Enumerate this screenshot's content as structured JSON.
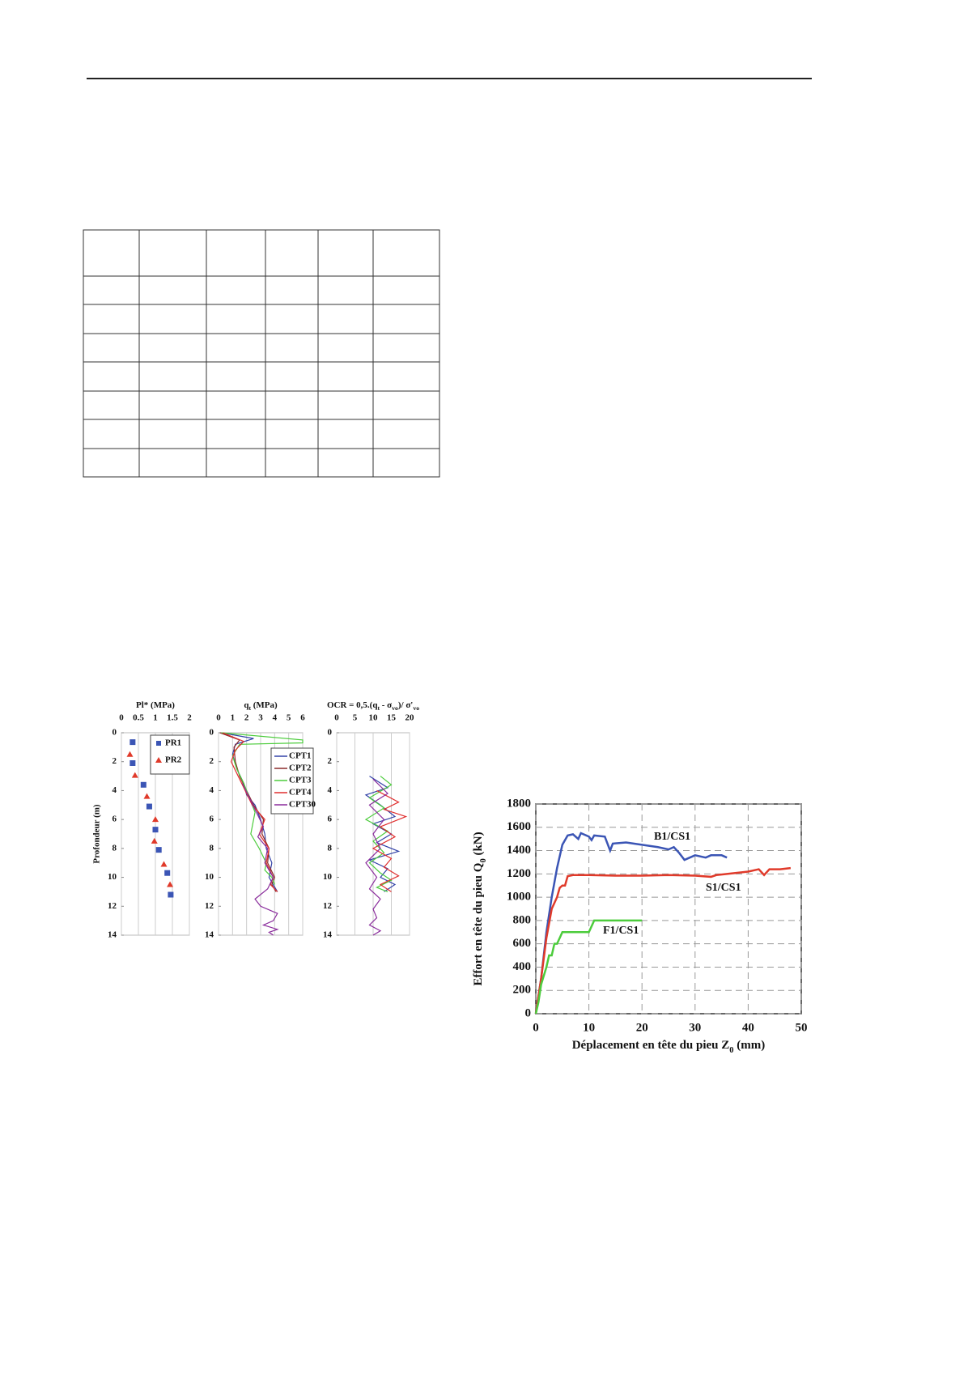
{
  "chart_data": [
    {
      "type": "scatter",
      "title": [
        {
          "text": "Pl* (MPa)"
        }
      ],
      "ylabel": "Profondeur (m)",
      "xlim": [
        0,
        2
      ],
      "xticks": [
        0,
        0.5,
        1,
        1.5,
        2
      ],
      "ylim": [
        0,
        14
      ],
      "yticks": [
        0,
        2,
        4,
        6,
        8,
        10,
        12,
        14
      ],
      "y_reversed": true,
      "x_axis_top": true,
      "grid": "vertical",
      "series": [
        {
          "name": "PR1",
          "color": "#3b55b5",
          "marker": "square",
          "x": [
            0.33,
            0.33,
            0.65,
            0.82,
            1.0,
            1.1,
            1.35,
            1.45
          ],
          "y": [
            0.65,
            2.1,
            3.6,
            5.1,
            6.7,
            8.1,
            9.7,
            11.2
          ]
        },
        {
          "name": "PR2",
          "color": "#e03a2a",
          "marker": "triangle",
          "x": [
            0.25,
            0.4,
            0.75,
            1.0,
            0.97,
            1.25,
            1.43
          ],
          "y": [
            1.5,
            2.95,
            4.4,
            6.0,
            7.5,
            9.1,
            10.5
          ]
        }
      ]
    },
    {
      "type": "line",
      "title": [
        {
          "text": "q"
        },
        {
          "text": "t",
          "sub": true
        },
        {
          "text": " (MPa)"
        }
      ],
      "xlim": [
        0,
        6
      ],
      "xticks": [
        0,
        1,
        2,
        3,
        4,
        5,
        6
      ],
      "ylim": [
        0,
        14
      ],
      "yticks": [
        0,
        2,
        4,
        6,
        8,
        10,
        12,
        14
      ],
      "y_reversed": true,
      "x_axis_top": true,
      "grid": "vertical",
      "series": [
        {
          "name": "CPT1",
          "color": "#3343a8",
          "x": [
            0.2,
            2.5,
            1.2,
            1.0,
            1.3,
            1.8,
            2.0,
            2.6,
            3.0,
            3.3,
            3.4,
            3.8,
            3.6,
            4.2
          ],
          "y": [
            0,
            0.4,
            0.8,
            1.5,
            2.5,
            3.5,
            4.3,
            5,
            6,
            7,
            8,
            9,
            10,
            11
          ]
        },
        {
          "name": "CPT2",
          "color": "#8b2a2a",
          "x": [
            0.1,
            1.5,
            1.1,
            1.2,
            1.5,
            2.0,
            2.5,
            3.2,
            3.1,
            3.6,
            3.5,
            4.0,
            3.8,
            4.1
          ],
          "y": [
            0,
            0.5,
            1,
            2,
            3,
            4,
            5,
            6,
            7,
            8,
            9,
            10,
            10.5,
            11
          ]
        },
        {
          "name": "CPT3",
          "color": "#4ccc3c",
          "x": [
            0.2,
            6.0,
            6.0,
            1.5,
            1.0,
            1.3,
            1.8,
            2.2,
            2.6,
            2.3,
            2.9,
            3.4,
            3.3,
            3.8,
            4.0
          ],
          "y": [
            0,
            0.5,
            0.7,
            0.8,
            1.6,
            2.5,
            3.5,
            4.5,
            5.5,
            7,
            8,
            9,
            9.5,
            10,
            10.5
          ]
        },
        {
          "name": "CPT4",
          "color": "#e02e2e",
          "x": [
            0.3,
            1.8,
            1.2,
            0.9,
            1.4,
            1.9,
            2.4,
            3.3,
            2.9,
            3.6,
            3.4,
            3.9,
            3.7,
            4.2
          ],
          "y": [
            0,
            0.6,
            1.2,
            2,
            3,
            4,
            5,
            6,
            7,
            8,
            9,
            10,
            10.5,
            11
          ]
        },
        {
          "name": "CPT30",
          "color": "#8a2c9c",
          "x": [
            1.7,
            2.2,
            2.7,
            3.2,
            2.8,
            3.5,
            3.3,
            3.9,
            3.5,
            2.6,
            3.0,
            4.2,
            3.9,
            3.2,
            4.2,
            3.6,
            3.9
          ],
          "y": [
            3.5,
            4.5,
            5.5,
            6.5,
            7.2,
            8,
            9,
            10,
            10.8,
            11.5,
            12,
            12.5,
            13,
            13.3,
            13.6,
            13.8,
            14
          ]
        }
      ]
    },
    {
      "type": "line",
      "title": [
        {
          "text": "OCR = 0,5.(q"
        },
        {
          "text": "t",
          "sub": true
        },
        {
          "text": " - σ"
        },
        {
          "text": "vo",
          "sub": true
        },
        {
          "text": ")/ σ'"
        },
        {
          "text": "vo",
          "sub": true
        }
      ],
      "xlim": [
        0,
        20
      ],
      "xticks": [
        0,
        5,
        10,
        15,
        20
      ],
      "ylim": [
        0,
        14
      ],
      "yticks": [
        0,
        2,
        4,
        6,
        8,
        10,
        12,
        14
      ],
      "y_reversed": true,
      "x_axis_top": true,
      "grid": "vertical",
      "series": [
        {
          "color": "#3343a8",
          "x": [
            9,
            14,
            8,
            12,
            16,
            10,
            15,
            11,
            17,
            9,
            14,
            12,
            16,
            13
          ],
          "y": [
            3,
            3.8,
            4.3,
            5,
            5.8,
            6.3,
            7,
            7.6,
            8.2,
            8.8,
            9.4,
            10,
            10.5,
            11
          ]
        },
        {
          "color": "#4ccc3c",
          "x": [
            12,
            15,
            9,
            13,
            8,
            14,
            10,
            13,
            9,
            12,
            15,
            11,
            14
          ],
          "y": [
            3,
            3.6,
            4.5,
            5.2,
            6,
            6.8,
            7.5,
            8.3,
            9,
            9.7,
            10.2,
            10.7,
            11
          ]
        },
        {
          "color": "#e02e2e",
          "x": [
            11,
            17,
            13,
            19,
            12,
            16,
            10,
            15,
            13,
            17,
            12,
            15
          ],
          "y": [
            4,
            4.8,
            5.3,
            5.8,
            6.5,
            7.2,
            8,
            8.7,
            9.3,
            9.9,
            10.5,
            11
          ]
        },
        {
          "color": "#8a2c9c",
          "x": [
            10,
            14,
            9,
            13,
            10,
            12,
            8,
            11,
            9,
            12,
            10,
            11,
            9,
            12,
            10
          ],
          "y": [
            3.2,
            4.2,
            5,
            6,
            7,
            8,
            9,
            10,
            10.8,
            11.5,
            12.2,
            12.8,
            13.3,
            13.7,
            14
          ]
        }
      ]
    },
    {
      "type": "line",
      "xlabel": [
        {
          "text": "Déplacement en tête du pieu Z"
        },
        {
          "text": "0",
          "sub": true
        },
        {
          "text": " (mm)"
        }
      ],
      "ylabel": [
        {
          "text": "Effort en tête du pieu Q"
        },
        {
          "text": "0",
          "sub": true
        },
        {
          "text": " (kN)"
        }
      ],
      "xlim": [
        0,
        50
      ],
      "xticks": [
        0,
        10,
        20,
        30,
        40,
        50
      ],
      "ylim": [
        0,
        1800
      ],
      "yticks": [
        0,
        200,
        400,
        600,
        800,
        1000,
        1200,
        1400,
        1600,
        1800
      ],
      "grid": "dashed",
      "annotations": [
        "B1/CS1",
        "S1/CS1",
        "F1/CS1"
      ],
      "series": [
        {
          "color": "#3b55b5",
          "x": [
            0,
            1,
            2,
            3,
            4,
            5,
            6,
            7,
            8,
            8.5,
            10,
            10.5,
            11,
            13,
            14,
            14.5,
            17,
            20,
            23,
            25,
            26,
            27,
            28,
            29,
            30,
            32,
            33,
            35,
            36
          ],
          "y": [
            0,
            300,
            700,
            1000,
            1250,
            1450,
            1530,
            1540,
            1500,
            1550,
            1520,
            1490,
            1530,
            1520,
            1400,
            1460,
            1470,
            1450,
            1430,
            1410,
            1430,
            1380,
            1320,
            1340,
            1360,
            1340,
            1360,
            1360,
            1340
          ]
        },
        {
          "color": "#e03a2a",
          "x": [
            0,
            1,
            2,
            3,
            4,
            4.5,
            5,
            5.5,
            6,
            7,
            10,
            15,
            20,
            25,
            30,
            33,
            34,
            36,
            40,
            42,
            43,
            44,
            46,
            48
          ],
          "y": [
            0,
            300,
            650,
            900,
            1000,
            1080,
            1100,
            1100,
            1180,
            1190,
            1190,
            1185,
            1185,
            1190,
            1185,
            1175,
            1190,
            1200,
            1220,
            1240,
            1190,
            1240,
            1240,
            1250
          ]
        },
        {
          "color": "#4ccc3c",
          "x": [
            0,
            0.5,
            1,
            2,
            2.5,
            3,
            3.5,
            4,
            4.5,
            5,
            10,
            11,
            20
          ],
          "y": [
            0,
            100,
            250,
            400,
            500,
            500,
            600,
            600,
            650,
            700,
            700,
            800,
            800
          ]
        }
      ]
    }
  ]
}
